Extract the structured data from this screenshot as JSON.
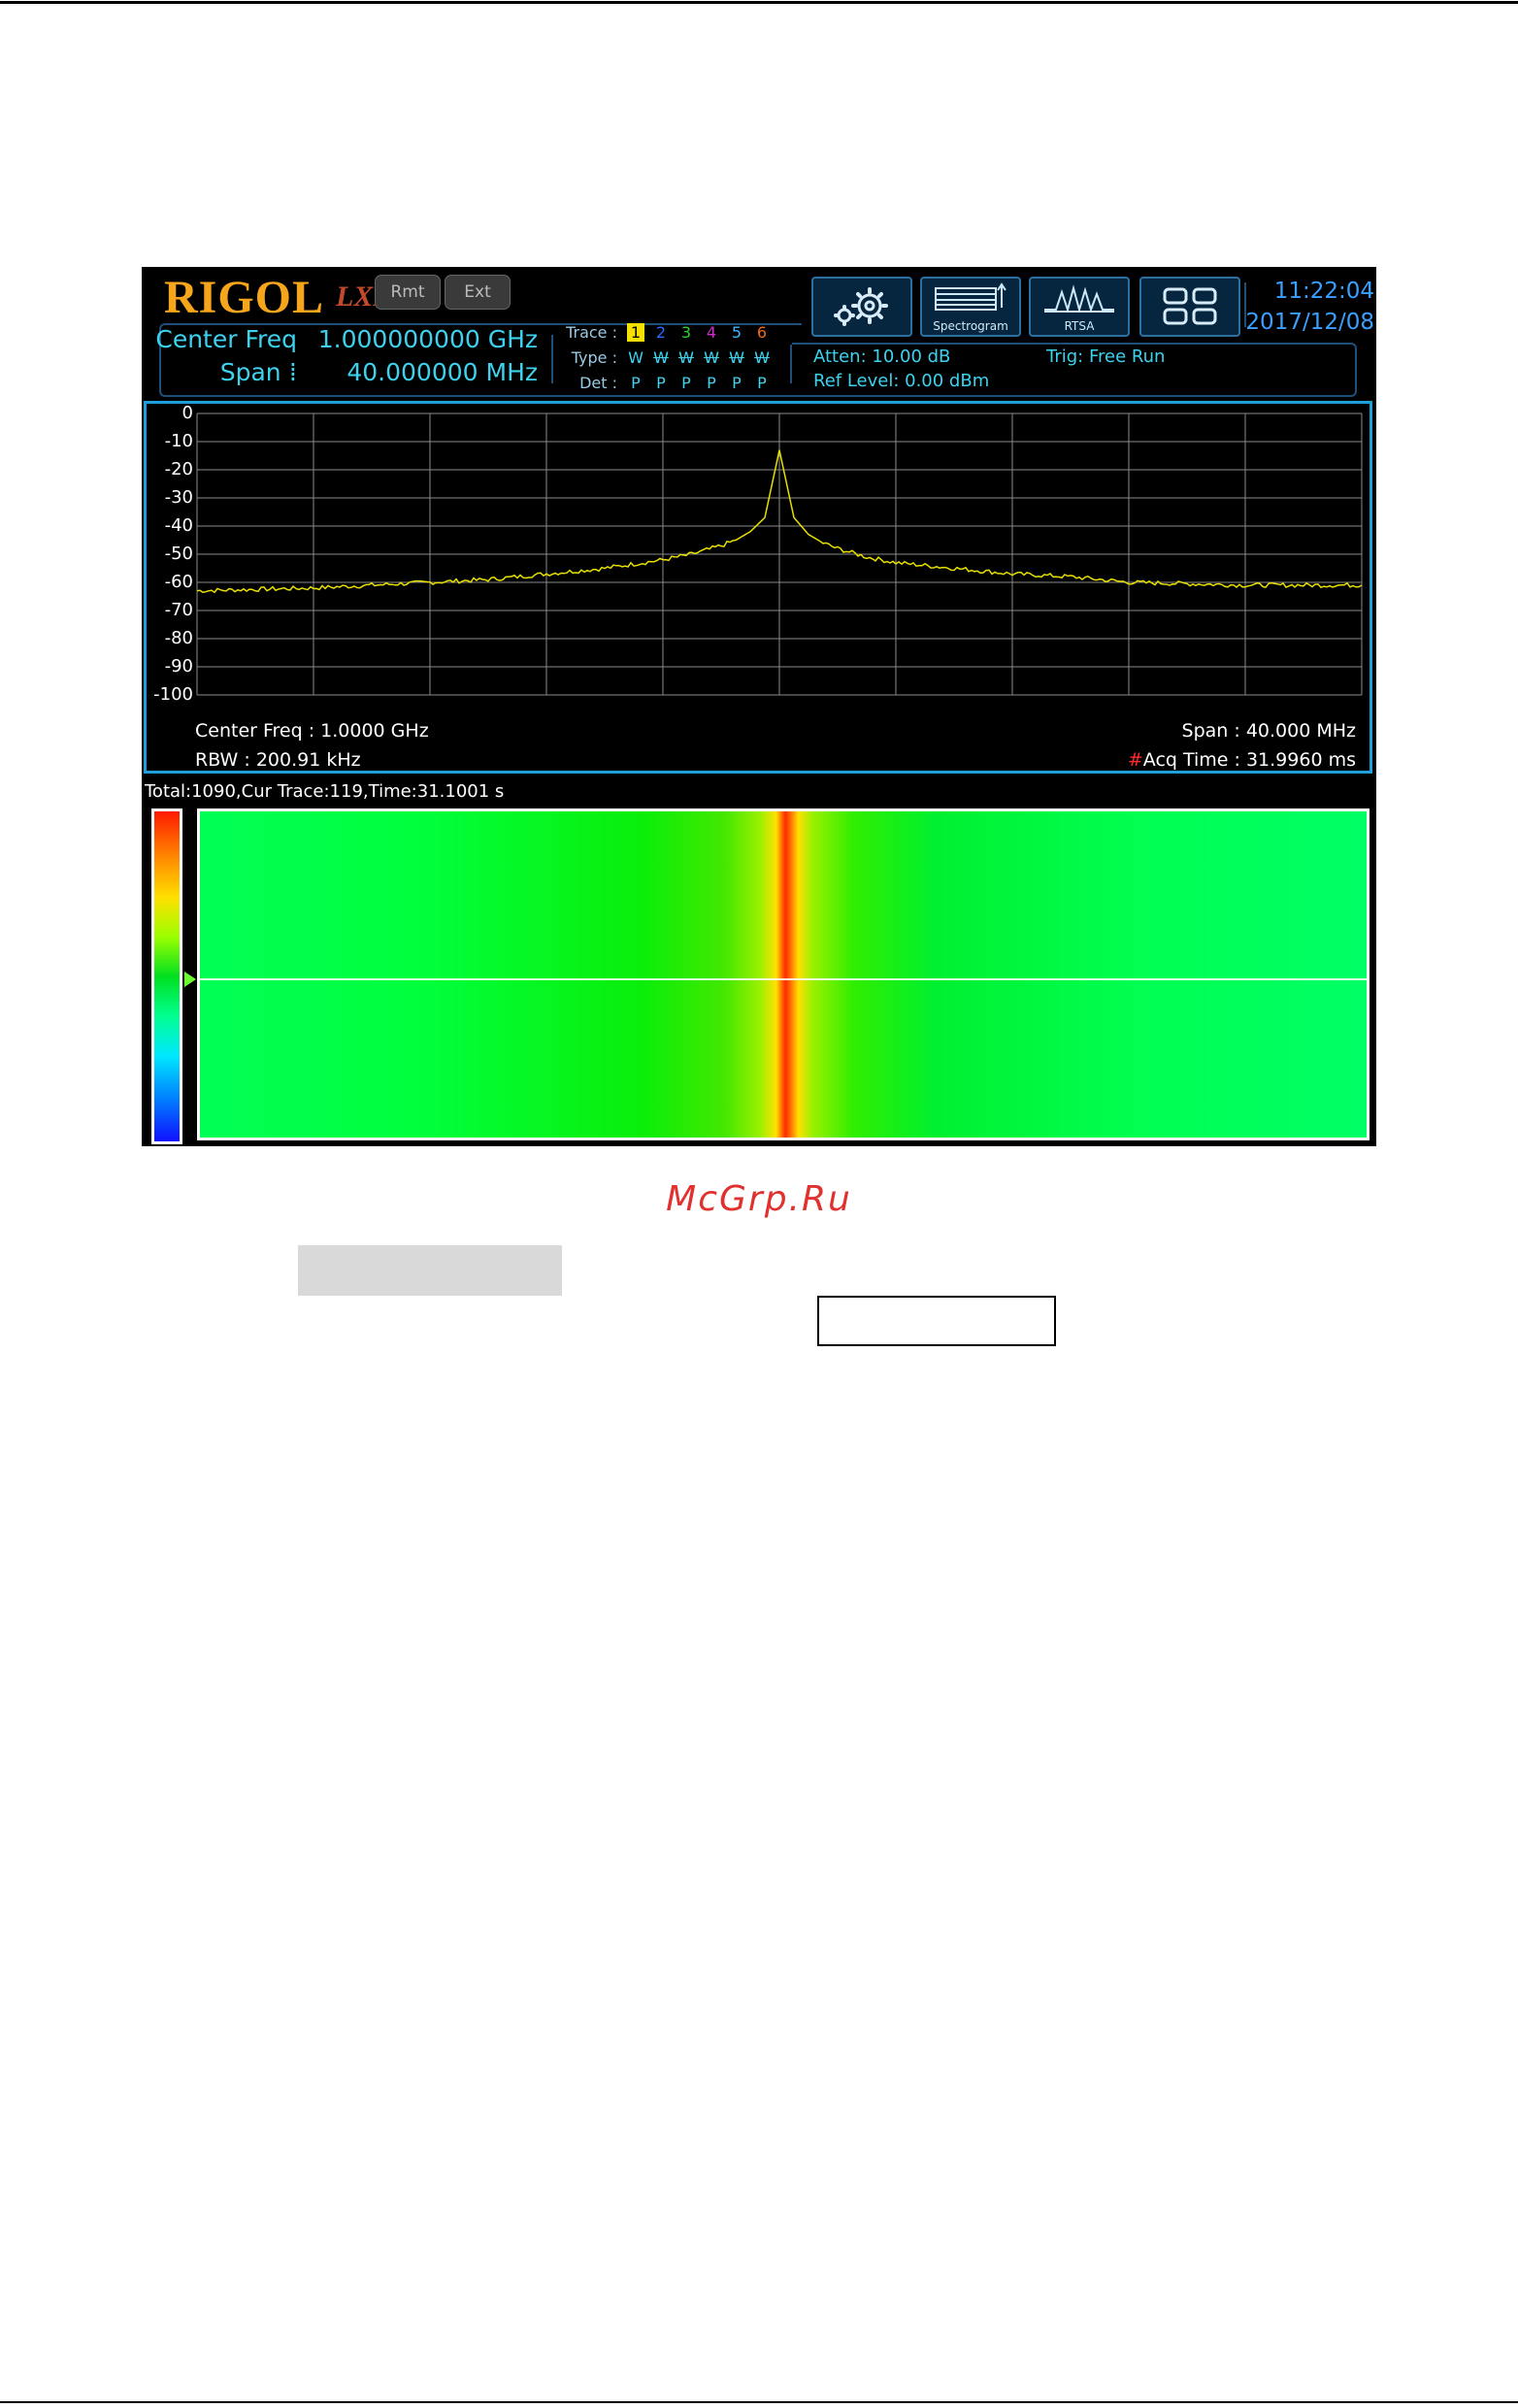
{
  "header": {
    "brand": "RIGOL",
    "lxi": "LXI",
    "rmt_label": "Rmt",
    "ext_label": "Ext",
    "center_freq_label": "Center Freq :",
    "center_freq_value": "1.000000000 GHz",
    "span_label": "Span :",
    "span_value": "40.000000 MHz",
    "trace_label": "Trace :",
    "type_label": "Type :",
    "det_label": "Det :",
    "trace_numbers": [
      "1",
      "2",
      "3",
      "4",
      "5",
      "6"
    ],
    "trace_colors": [
      "#f5e000",
      "#2a6aff",
      "#2ad12a",
      "#d02ad0",
      "#3db6ff",
      "#f06a20"
    ],
    "trace_types": [
      "W",
      "W",
      "W",
      "W",
      "W",
      "W"
    ],
    "trace_dets": [
      "P",
      "P",
      "P",
      "P",
      "P",
      "P"
    ],
    "atten": "Atten: 10.00 dB",
    "ref_level": "Ref Level: 0.00 dBm",
    "trig": "Trig: Free Run",
    "time": "11:22:04",
    "date": "2017/12/08"
  },
  "toolbar": {
    "settings_icon": "gear-icon",
    "spectrogram_label": "Spectrogram",
    "rtsa_label": "RTSA",
    "layout_icon": "grid-layout-icon"
  },
  "spectrum": {
    "center_freq": "Center Freq : 1.0000 GHz",
    "rbw": "RBW : 200.91 kHz",
    "span": "Span : 40.000 MHz",
    "acq_hash": "#",
    "acq_time": "Acq Time : 31.9960 ms",
    "trace_color": "#e8e000"
  },
  "chart_data": {
    "type": "line",
    "yticks": [
      "0",
      "-10",
      "-20",
      "-30",
      "-40",
      "-50",
      "-60",
      "-70",
      "-80",
      "-90",
      "-100"
    ],
    "ylim": [
      -100,
      0
    ],
    "xlim": [
      0.98,
      1.02
    ],
    "grid": true,
    "x": [
      0.98,
      0.984,
      0.988,
      0.99,
      0.992,
      0.994,
      0.996,
      0.997,
      0.998,
      0.9985,
      0.999,
      0.9995,
      1.0,
      1.0005,
      1.001,
      1.0015,
      1.002,
      1.003,
      1.004,
      1.006,
      1.008,
      1.01,
      1.012,
      1.016,
      1.02
    ],
    "series": [
      {
        "values": [
          -63,
          -62,
          -60,
          -59,
          -57,
          -55,
          -52,
          -50,
          -47,
          -45,
          -42,
          -37,
          -13,
          -37,
          -43,
          -46,
          -48,
          -51,
          -53,
          -55,
          -57,
          -58,
          -60,
          -61,
          -61
        ]
      }
    ]
  },
  "spectrogram": {
    "status": "Total:1090,Cur Trace:119,Time:31.1001 s"
  },
  "page": {
    "watermark": "McGrp.Ru"
  }
}
